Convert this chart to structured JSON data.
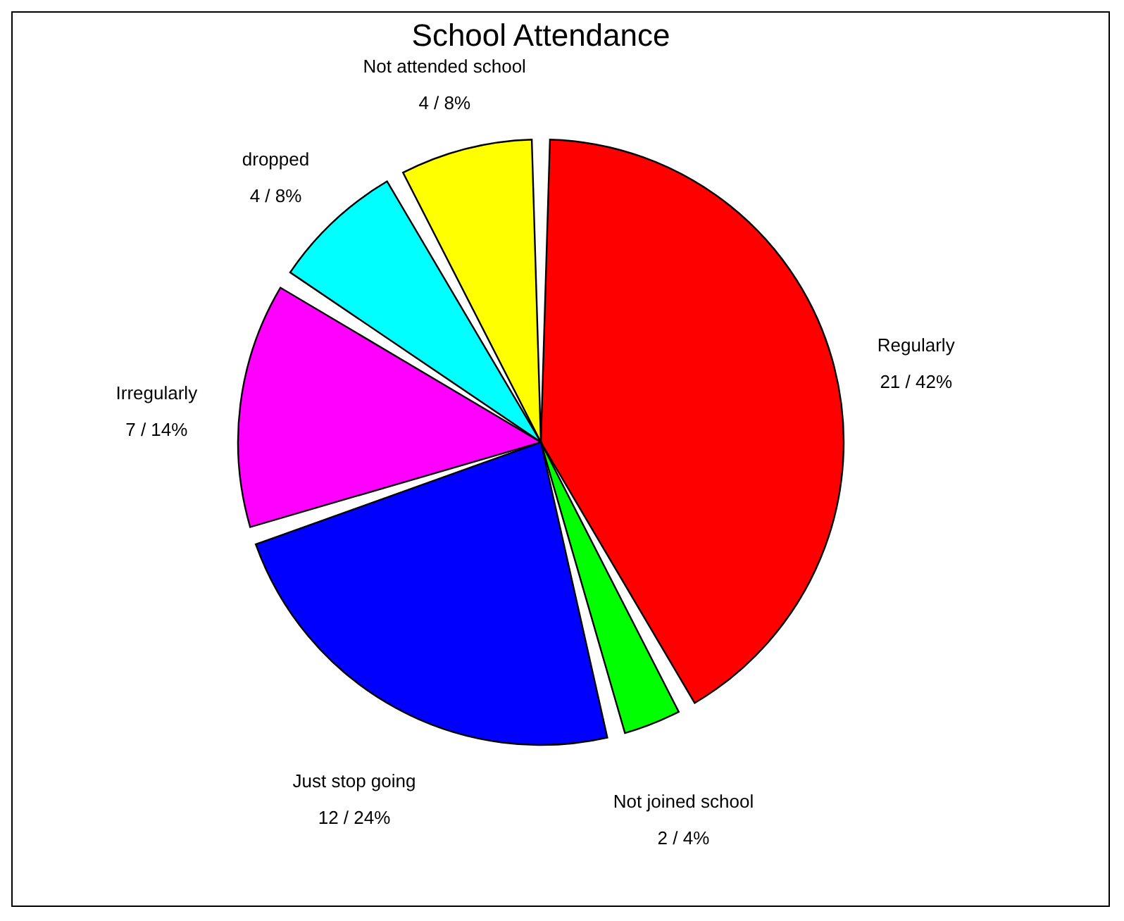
{
  "chart_data": {
    "type": "pie",
    "title": "School Attendance",
    "categories": [
      "Regularly",
      "Not joined school",
      "Just stop going",
      "Irregularly",
      "dropped",
      "Not attended school"
    ],
    "values": [
      21,
      2,
      12,
      7,
      4,
      4
    ],
    "colors": [
      "#ff0000",
      "#00ff00",
      "#0000ff",
      "#ff00ff",
      "#00ffff",
      "#ffff00"
    ],
    "value_labels": [
      "21 / 42%",
      "2 / 4%",
      "12 / 24%",
      "7 / 14%",
      "4 / 8%",
      "4 / 8%"
    ],
    "legend": false
  }
}
